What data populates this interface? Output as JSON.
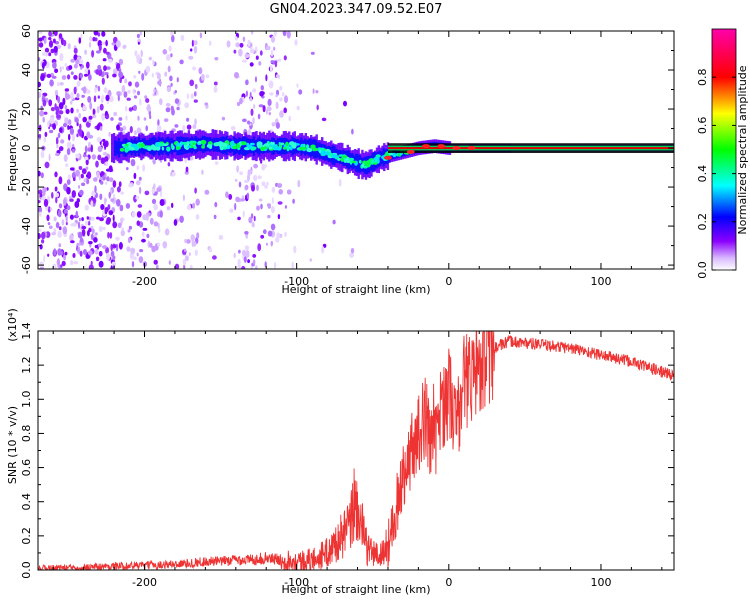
{
  "title": "GN04.2023.347.09.52.E07",
  "chart_data": [
    {
      "type": "heatmap",
      "xlabel": "Height of straight line (km)",
      "ylabel": "Frequency (Hz)",
      "xlim": [
        -270,
        148
      ],
      "ylim": [
        -62,
        60
      ],
      "x_ticks": [
        -200,
        -100,
        0,
        100
      ],
      "y_ticks": [
        -60,
        -40,
        -20,
        0,
        20,
        40,
        60
      ],
      "colorbar": {
        "label": "Normalized spectral amplitude",
        "range": [
          0,
          1
        ],
        "ticks": [
          0.0,
          0.2,
          0.4,
          0.6,
          0.8
        ],
        "colormap": [
          "#ffffff",
          "#8a00ff",
          "#0000ff",
          "#00ffff",
          "#00ff00",
          "#ffff00",
          "#ff0000",
          "#ff00aa"
        ]
      },
      "main_band": {
        "x": [
          -220,
          -200,
          -180,
          -160,
          -140,
          -120,
          -100,
          -90,
          -80,
          -70,
          -60,
          -55,
          -50,
          -45,
          -40,
          -35,
          -30,
          -20,
          -10,
          0,
          20,
          50,
          100,
          148
        ],
        "center_freq": [
          0,
          1,
          1,
          2,
          1,
          1,
          1,
          0,
          -3,
          -5,
          -8,
          -9,
          -7,
          -5,
          -4,
          -3,
          -2,
          0,
          1,
          0,
          0,
          0,
          0,
          0
        ]
      }
    },
    {
      "type": "line",
      "xlabel": "Height of straight line (km)",
      "ylabel": "SNR (10 * v/v)",
      "y_multiplier": "(x10⁴)",
      "xlim": [
        -270,
        148
      ],
      "ylim": [
        0,
        1.4
      ],
      "x_ticks": [
        -200,
        -100,
        0,
        100
      ],
      "y_ticks": [
        0.0,
        0.2,
        0.4,
        0.6,
        0.8,
        1.0,
        1.2,
        1.4
      ],
      "series": [
        {
          "color": "#ee3333",
          "x": [
            -270,
            -250,
            -230,
            -210,
            -190,
            -170,
            -160,
            -150,
            -140,
            -130,
            -120,
            -110,
            -100,
            -90,
            -80,
            -75,
            -70,
            -65,
            -62,
            -58,
            -55,
            -50,
            -45,
            -40,
            -35,
            -30,
            -25,
            -20,
            -15,
            -10,
            -5,
            0,
            5,
            10,
            15,
            20,
            25,
            30,
            35,
            40,
            50,
            60,
            70,
            80,
            90,
            100,
            110,
            120,
            130,
            140,
            148
          ],
          "y": [
            0.01,
            0.015,
            0.02,
            0.025,
            0.03,
            0.04,
            0.05,
            0.05,
            0.06,
            0.06,
            0.07,
            0.06,
            0.05,
            0.06,
            0.1,
            0.15,
            0.2,
            0.25,
            0.4,
            0.3,
            0.15,
            0.1,
            0.08,
            0.15,
            0.35,
            0.55,
            0.7,
            0.8,
            0.9,
            0.7,
            0.95,
            1.05,
            0.85,
            1.1,
            1.15,
            1.22,
            1.25,
            1.3,
            1.32,
            1.34,
            1.33,
            1.32,
            1.31,
            1.3,
            1.28,
            1.26,
            1.24,
            1.22,
            1.19,
            1.16,
            1.14
          ]
        }
      ]
    }
  ]
}
